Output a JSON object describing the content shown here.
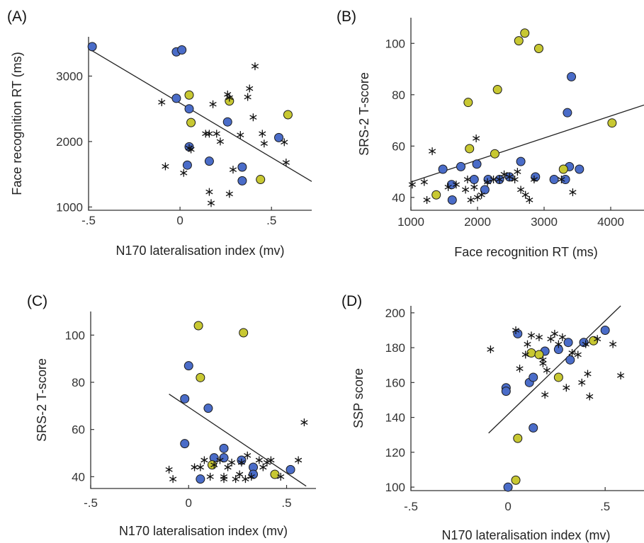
{
  "colors": {
    "blue": "#4a6cc8",
    "yellow": "#c8c832",
    "star": "#111111",
    "axis": "#333333"
  },
  "chart_data": [
    {
      "type": "scatter",
      "panel_label": "(A)",
      "xlabel": "N170 lateralisation index (mv)",
      "ylabel": "Face recognition RT (ms)",
      "xlim": [
        -0.5,
        0.72
      ],
      "ylim": [
        950,
        3600
      ],
      "xticks": [
        -0.5,
        0,
        0.5
      ],
      "xtick_labels": [
        "-.5",
        "0",
        ".5"
      ],
      "yticks": [
        1000,
        2000,
        3000
      ],
      "ytick_labels": [
        "1000",
        "2000",
        "3000"
      ],
      "grid": false,
      "fit_line": {
        "x": [
          -0.5,
          0.72
        ],
        "y": [
          3420,
          1390
        ]
      },
      "series": [
        {
          "marker": "circle-blue",
          "x": [
            -0.48,
            -0.02,
            0.01,
            -0.02,
            0.05,
            0.05,
            0.04,
            0.16,
            0.26,
            0.34,
            0.34,
            0.54
          ],
          "y": [
            3450,
            3370,
            3400,
            2660,
            2500,
            1920,
            1640,
            1700,
            2300,
            1610,
            1400,
            2060
          ]
        },
        {
          "marker": "circle-yellow",
          "x": [
            0.05,
            0.06,
            0.27,
            0.44,
            0.59
          ],
          "y": [
            2710,
            2290,
            2620,
            1420,
            2410
          ]
        },
        {
          "marker": "star",
          "x": [
            -0.1,
            -0.08,
            0.02,
            0.05,
            0.06,
            0.14,
            0.18,
            0.2,
            0.22,
            0.26,
            0.27,
            0.29,
            0.33,
            0.37,
            0.38,
            0.4,
            0.41,
            0.45,
            0.46,
            0.57,
            0.58,
            0.16,
            0.17,
            0.16,
            0.27
          ],
          "y": [
            2600,
            1620,
            1520,
            1900,
            1880,
            2120,
            2570,
            2120,
            2000,
            2720,
            2670,
            1570,
            2100,
            2680,
            2810,
            2370,
            3150,
            2120,
            1970,
            1990,
            1680,
            1230,
            1060,
            2120,
            1200
          ]
        }
      ]
    },
    {
      "type": "scatter",
      "panel_label": "(B)",
      "xlabel": "Face recognition RT (ms)",
      "ylabel": "SRS-2 T-score",
      "xlim": [
        1000,
        4500
      ],
      "ylim": [
        35,
        110
      ],
      "xticks": [
        1000,
        2000,
        3000,
        4000
      ],
      "xtick_labels": [
        "1000",
        "2000",
        "3000",
        "4000"
      ],
      "yticks": [
        40,
        60,
        80,
        100
      ],
      "ytick_labels": [
        "40",
        "60",
        "80",
        "100"
      ],
      "grid": false,
      "fit_line": {
        "x": [
          1000,
          4500
        ],
        "y": [
          46,
          76
        ]
      },
      "series": [
        {
          "marker": "circle-blue",
          "x": [
            1480,
            1610,
            1620,
            1750,
            1950,
            1990,
            2110,
            2160,
            2330,
            2480,
            2650,
            2870,
            3150,
            3320,
            3350,
            3380,
            3410,
            3530
          ],
          "y": [
            51,
            45,
            39,
            52,
            47,
            53,
            43,
            47,
            47,
            48,
            54,
            48,
            47,
            47,
            73,
            52,
            87,
            51
          ]
        },
        {
          "marker": "circle-yellow",
          "x": [
            1380,
            1860,
            1880,
            2260,
            2300,
            2620,
            2710,
            2920,
            3290,
            4020
          ],
          "y": [
            41,
            77,
            59,
            57,
            82,
            101,
            104,
            98,
            51,
            69
          ]
        },
        {
          "marker": "star",
          "x": [
            1020,
            1200,
            1240,
            1320,
            1560,
            1680,
            1820,
            1850,
            1900,
            1950,
            1980,
            2000,
            2060,
            2150,
            2240,
            2330,
            2400,
            2480,
            2560,
            2600,
            2650,
            2720,
            2780,
            2850,
            3260,
            3430
          ],
          "y": [
            45,
            46,
            39,
            58,
            44,
            45,
            43,
            47,
            39,
            44,
            63,
            40,
            41,
            46,
            47,
            47,
            49,
            48,
            47,
            50,
            43,
            41,
            39,
            47,
            47,
            42
          ]
        }
      ]
    },
    {
      "type": "scatter",
      "panel_label": "(C)",
      "xlabel": "N170 lateralisation index (mv)",
      "ylabel": "SRS-2 T-score",
      "xlim": [
        -0.5,
        0.65
      ],
      "ylim": [
        35,
        110
      ],
      "xticks": [
        -0.5,
        0,
        0.5
      ],
      "xtick_labels": [
        "-.5",
        "0",
        ".5"
      ],
      "yticks": [
        40,
        60,
        80,
        100
      ],
      "ytick_labels": [
        "40",
        "60",
        "80",
        "100"
      ],
      "grid": false,
      "fit_line": {
        "x": [
          -0.1,
          0.6
        ],
        "y": [
          75,
          36
        ]
      },
      "series": [
        {
          "marker": "circle-blue",
          "x": [
            -0.02,
            -0.02,
            0.0,
            0.06,
            0.1,
            0.13,
            0.18,
            0.18,
            0.27,
            0.33,
            0.33,
            0.52
          ],
          "y": [
            73,
            54,
            87,
            39,
            69,
            48,
            48,
            52,
            47,
            44,
            41,
            43
          ]
        },
        {
          "marker": "circle-yellow",
          "x": [
            0.05,
            0.06,
            0.28,
            0.12,
            0.44
          ],
          "y": [
            104,
            82,
            101,
            45,
            41
          ]
        },
        {
          "marker": "star",
          "x": [
            -0.1,
            -0.08,
            0.03,
            0.06,
            0.08,
            0.11,
            0.13,
            0.16,
            0.18,
            0.2,
            0.22,
            0.24,
            0.26,
            0.27,
            0.3,
            0.32,
            0.36,
            0.38,
            0.4,
            0.42,
            0.47,
            0.56,
            0.59,
            0.18,
            0.29
          ],
          "y": [
            43,
            39,
            44,
            44,
            47,
            40,
            45,
            47,
            39,
            44,
            46,
            39,
            41,
            46,
            49,
            40,
            47,
            44,
            46,
            47,
            40,
            47,
            63,
            40,
            39
          ]
        }
      ]
    },
    {
      "type": "scatter",
      "panel_label": "(D)",
      "xlabel": "N170 lateralisation index (mv)",
      "ylabel": "SSP score",
      "xlim": [
        -0.5,
        0.7
      ],
      "ylim": [
        98,
        204
      ],
      "xticks": [
        -0.5,
        0,
        0.5
      ],
      "xtick_labels": [
        "-.5",
        "0",
        ".5"
      ],
      "yticks": [
        100,
        120,
        140,
        160,
        180,
        200
      ],
      "ytick_labels": [
        "100",
        "120",
        "140",
        "160",
        "180",
        "200"
      ],
      "grid": false,
      "fit_line": {
        "x": [
          -0.1,
          0.58
        ],
        "y": [
          131,
          204
        ]
      },
      "series": [
        {
          "marker": "circle-blue",
          "x": [
            -0.01,
            -0.01,
            0.0,
            0.05,
            0.11,
            0.13,
            0.13,
            0.19,
            0.26,
            0.31,
            0.32,
            0.39,
            0.5
          ],
          "y": [
            157,
            155,
            100,
            188,
            160,
            163,
            134,
            178,
            179,
            183,
            173,
            183,
            190
          ]
        },
        {
          "marker": "circle-yellow",
          "x": [
            0.04,
            0.05,
            0.12,
            0.16,
            0.26,
            0.44
          ],
          "y": [
            104,
            128,
            177,
            176,
            163,
            184
          ]
        },
        {
          "marker": "star",
          "x": [
            -0.09,
            0.04,
            0.06,
            0.09,
            0.12,
            0.16,
            0.18,
            0.19,
            0.2,
            0.22,
            0.24,
            0.26,
            0.28,
            0.3,
            0.33,
            0.36,
            0.38,
            0.4,
            0.41,
            0.42,
            0.46,
            0.54,
            0.58,
            0.18,
            0.1
          ],
          "y": [
            179,
            190,
            168,
            176,
            187,
            186,
            173,
            153,
            167,
            185,
            188,
            182,
            186,
            157,
            177,
            176,
            160,
            182,
            165,
            152,
            185,
            182,
            164,
            171,
            182
          ]
        }
      ]
    }
  ]
}
